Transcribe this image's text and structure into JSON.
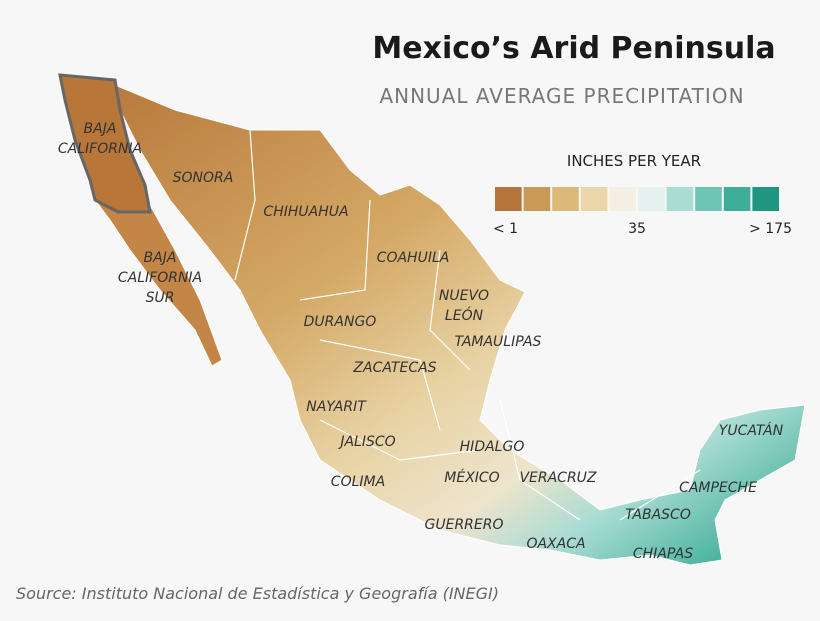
{
  "header": {
    "title": "Mexico’s Arid Peninsula",
    "subtitle": "ANNUAL AVERAGE PRECIPITATION"
  },
  "legend": {
    "title": "INCHES PER YEAR",
    "colors": [
      "#b4743a",
      "#c99a55",
      "#dbb978",
      "#ead6a8",
      "#f5efe3",
      "#e4f1ef",
      "#a9dcd3",
      "#6fc5b5",
      "#3eae99",
      "#1e9680"
    ],
    "labels": [
      "< 1",
      "35",
      "> 175"
    ]
  },
  "regions": [
    {
      "lines": [
        "BAJA",
        "CALIFORNIA"
      ]
    },
    {
      "lines": [
        "SONORA"
      ]
    },
    {
      "lines": [
        "CHIHUAHUA"
      ]
    },
    {
      "lines": [
        "BAJA",
        "CALIFORNIA",
        "SUR"
      ]
    },
    {
      "lines": [
        "COAHUILA"
      ]
    },
    {
      "lines": [
        "NUEVO",
        "LEÓN"
      ]
    },
    {
      "lines": [
        "DURANGO"
      ]
    },
    {
      "lines": [
        "TAMAULIPAS"
      ]
    },
    {
      "lines": [
        "ZACATECAS"
      ]
    },
    {
      "lines": [
        "NAYARIT"
      ]
    },
    {
      "lines": [
        "JALISCO"
      ]
    },
    {
      "lines": [
        "HIDALGO"
      ]
    },
    {
      "lines": [
        "COLIMA"
      ]
    },
    {
      "lines": [
        "MÉXICO"
      ]
    },
    {
      "lines": [
        "VERACRUZ"
      ]
    },
    {
      "lines": [
        "YUCATÁN"
      ]
    },
    {
      "lines": [
        "CAMPECHE"
      ]
    },
    {
      "lines": [
        "TABASCO"
      ]
    },
    {
      "lines": [
        "GUERRERO"
      ]
    },
    {
      "lines": [
        "OAXACA"
      ]
    },
    {
      "lines": [
        "CHIAPAS"
      ]
    }
  ],
  "source": "Source: Instituto Nacional de Estadística y Geografía (INEGI)"
}
